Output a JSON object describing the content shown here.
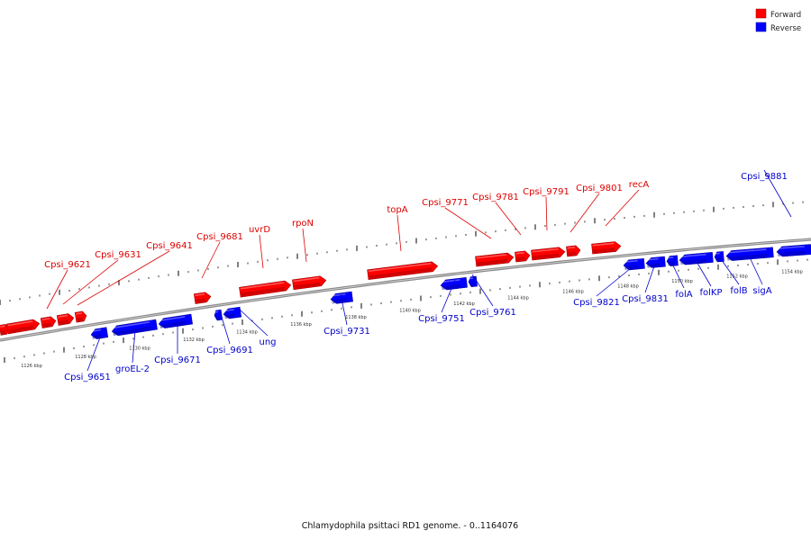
{
  "legend": {
    "forward_label": "Forward",
    "reverse_label": "Reverse",
    "forward_color": "#ff0000",
    "reverse_color": "#0000ff"
  },
  "caption": "Chlamydophila psittaci RD1 genome. - 0..1164076",
  "backbone_color": "#8a8a8a",
  "kbp_marks": [
    {
      "label": "1126 kbp",
      "strand": "reverse"
    },
    {
      "label": "1128 kbp",
      "strand": "reverse"
    },
    {
      "label": "1130 kbp",
      "strand": "reverse"
    },
    {
      "label": "1132 kbp",
      "strand": "reverse"
    },
    {
      "label": "1134 kbp",
      "strand": "reverse"
    },
    {
      "label": "1136 kbp",
      "strand": "reverse"
    },
    {
      "label": "1138 kbp",
      "strand": "reverse"
    },
    {
      "label": "1140 kbp",
      "strand": "reverse"
    },
    {
      "label": "1142 kbp",
      "strand": "reverse"
    },
    {
      "label": "1144 kbp",
      "strand": "reverse"
    },
    {
      "label": "1146 kbp",
      "strand": "reverse"
    },
    {
      "label": "1148 kbp",
      "strand": "reverse"
    },
    {
      "label": "1150 kbp",
      "strand": "reverse"
    },
    {
      "label": "1152 kbp",
      "strand": "reverse"
    },
    {
      "label": "1154 kbp",
      "strand": "reverse"
    }
  ],
  "genes_forward": [
    {
      "name": "Cpsi_9621",
      "strand": "forward"
    },
    {
      "name": "Cpsi_9631",
      "strand": "forward"
    },
    {
      "name": "Cpsi_9641",
      "strand": "forward"
    },
    {
      "name": "Cpsi_9681",
      "strand": "forward"
    },
    {
      "name": "uvrD",
      "strand": "forward"
    },
    {
      "name": "rpoN",
      "strand": "forward"
    },
    {
      "name": "topA",
      "strand": "forward"
    },
    {
      "name": "Cpsi_9771",
      "strand": "forward"
    },
    {
      "name": "Cpsi_9781",
      "strand": "forward"
    },
    {
      "name": "Cpsi_9791",
      "strand": "forward"
    },
    {
      "name": "Cpsi_9801",
      "strand": "forward"
    },
    {
      "name": "recA",
      "strand": "forward"
    }
  ],
  "genes_reverse": [
    {
      "name": "Cpsi_9651",
      "strand": "reverse"
    },
    {
      "name": "groEL-2",
      "strand": "reverse"
    },
    {
      "name": "Cpsi_9671",
      "strand": "reverse"
    },
    {
      "name": "Cpsi_9691",
      "strand": "reverse"
    },
    {
      "name": "ung",
      "strand": "reverse"
    },
    {
      "name": "Cpsi_9731",
      "strand": "reverse"
    },
    {
      "name": "Cpsi_9751",
      "strand": "reverse"
    },
    {
      "name": "Cpsi_9761",
      "strand": "reverse"
    },
    {
      "name": "Cpsi_9821",
      "strand": "reverse"
    },
    {
      "name": "Cpsi_9831",
      "strand": "reverse"
    },
    {
      "name": "folA",
      "strand": "reverse"
    },
    {
      "name": "folKP",
      "strand": "reverse"
    },
    {
      "name": "folB",
      "strand": "reverse"
    },
    {
      "name": "sigA",
      "strand": "reverse"
    },
    {
      "name": "Cpsi_9881",
      "strand": "reverse"
    }
  ]
}
